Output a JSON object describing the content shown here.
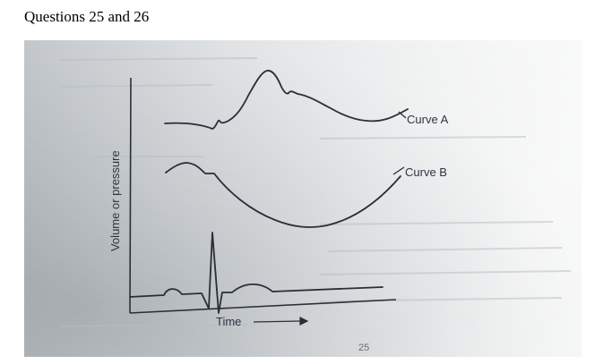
{
  "heading": "Questions 25 and 26",
  "diagram": {
    "y_axis_label": "Volume or pressure",
    "x_axis_label": "Time",
    "curve_a_label": "Curve A",
    "curve_b_label": "Curve B",
    "page_number": "25"
  },
  "colors": {
    "paper_light": "#f2f3f3",
    "paper_mid": "#cfd3d6",
    "paper_shadow": "#9ea4aa",
    "ink": "#2a2e36"
  }
}
